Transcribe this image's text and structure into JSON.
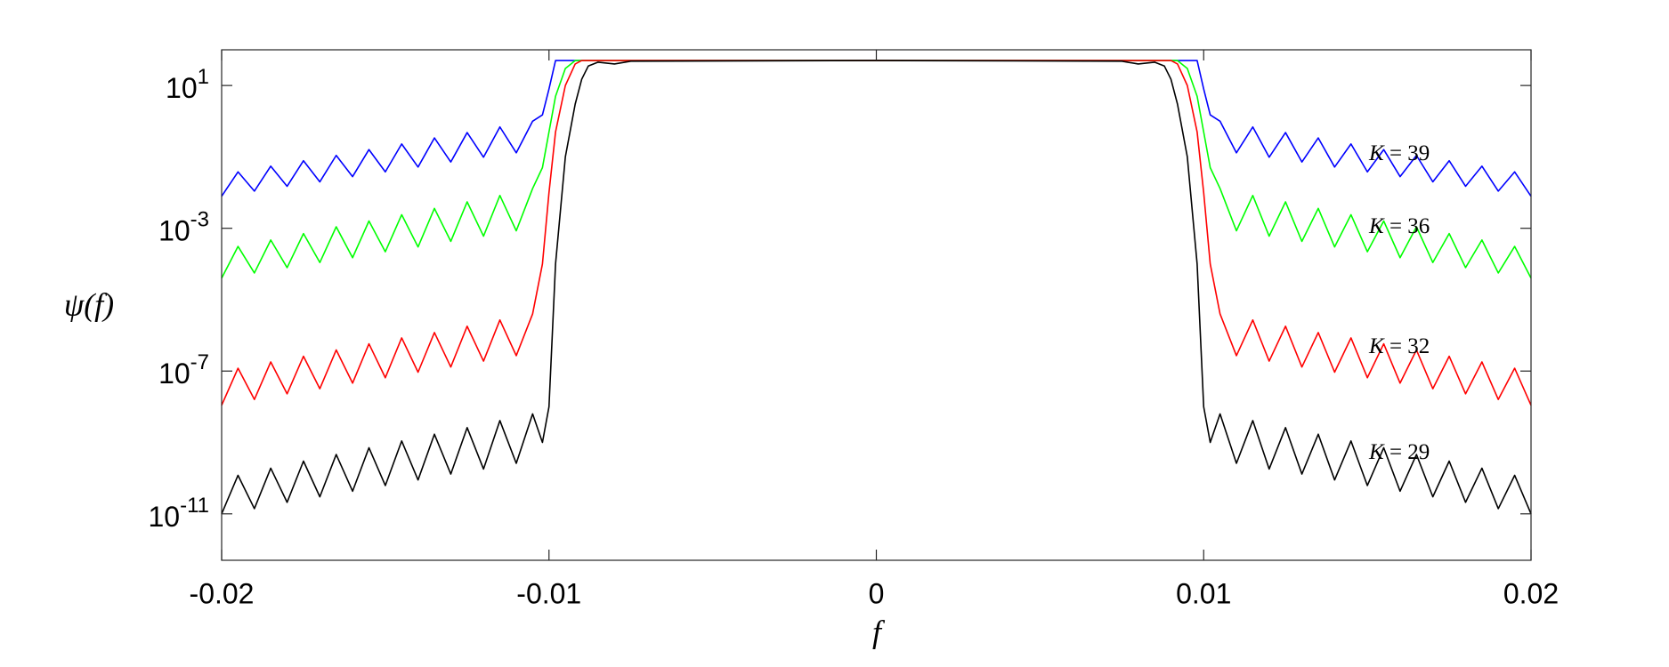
{
  "chart_data": {
    "type": "line",
    "x_label": "f",
    "y_label": "ψ(f)",
    "log_y": true,
    "xlim": [
      -0.02,
      0.02
    ],
    "xticks": [
      -0.02,
      -0.01,
      0,
      0.01,
      0.02
    ],
    "ylim": [
      5e-13,
      100
    ],
    "yticks": [
      {
        "value": 10,
        "label": "10^1"
      },
      {
        "value": 0.001,
        "label": "10^-3"
      },
      {
        "value": 1e-07,
        "label": "10^-7"
      },
      {
        "value": 1e-11,
        "label": "10^-11"
      }
    ],
    "x": [
      -0.02,
      -0.0195,
      -0.019,
      -0.0185,
      -0.018,
      -0.0175,
      -0.017,
      -0.0165,
      -0.016,
      -0.0155,
      -0.015,
      -0.0145,
      -0.014,
      -0.0135,
      -0.013,
      -0.0125,
      -0.012,
      -0.0115,
      -0.011,
      -0.0105,
      -0.0102,
      -0.01,
      -0.0098,
      -0.0095,
      -0.0092,
      -0.009,
      -0.0088,
      -0.0085,
      -0.008,
      -0.0075,
      0,
      0.0075,
      0.008,
      0.0085,
      0.0088,
      0.009,
      0.0092,
      0.0095,
      0.0098,
      0.01,
      0.0102,
      0.0105,
      0.011,
      0.0115,
      0.012,
      0.0125,
      0.013,
      0.0135,
      0.014,
      0.0145,
      0.015,
      0.0155,
      0.016,
      0.0165,
      0.017,
      0.0175,
      0.018,
      0.0185,
      0.019,
      0.0195,
      0.02
    ],
    "series": [
      {
        "name": "K = 39",
        "color": "#0000ff",
        "values": [
          0.0079,
          0.038,
          0.011,
          0.055,
          0.015,
          0.078,
          0.02,
          0.11,
          0.028,
          0.16,
          0.038,
          0.23,
          0.052,
          0.34,
          0.072,
          0.48,
          0.098,
          0.69,
          0.13,
          1,
          1.5,
          8,
          50,
          50,
          50,
          50,
          50,
          50,
          50,
          50,
          50,
          50,
          50,
          50,
          50,
          50,
          50,
          50,
          50,
          8,
          1.5,
          1,
          0.13,
          0.69,
          0.098,
          0.48,
          0.072,
          0.34,
          0.052,
          0.23,
          0.038,
          0.16,
          0.028,
          0.11,
          0.02,
          0.078,
          0.015,
          0.055,
          0.011,
          0.038,
          0.0079
        ]
      },
      {
        "name": "K = 36",
        "color": "#00ff00",
        "values": [
          4e-05,
          0.00031,
          5.6e-05,
          0.00047,
          7.9e-05,
          0.00071,
          0.00011,
          0.0011,
          0.00015,
          0.0016,
          0.00022,
          0.0024,
          0.0003,
          0.0036,
          0.00043,
          0.0055,
          0.0006,
          0.0083,
          0.00085,
          0.013,
          0.05,
          0.5,
          5,
          30,
          50,
          50,
          50,
          50,
          50,
          50,
          50,
          50,
          50,
          50,
          50,
          50,
          50,
          30,
          5,
          0.5,
          0.05,
          0.013,
          0.00085,
          0.0083,
          0.0006,
          0.0055,
          0.00043,
          0.0036,
          0.0003,
          0.0024,
          0.00022,
          0.0016,
          0.00015,
          0.0011,
          0.00011,
          0.00071,
          7.9e-05,
          0.00047,
          5.6e-05,
          0.00031,
          4e-05
        ]
      },
      {
        "name": "K = 32",
        "color": "#ff0000",
        "values": [
          1.1e-08,
          1.2e-07,
          1.6e-08,
          1.8e-07,
          2.3e-08,
          2.6e-07,
          3.2e-08,
          3.9e-07,
          4.6e-08,
          5.8e-07,
          6.5e-08,
          8.5e-07,
          9.3e-08,
          1.2e-06,
          1.3e-07,
          1.8e-06,
          1.9e-07,
          2.7e-06,
          2.7e-07,
          4e-06,
          0.0001,
          0.01,
          0.5,
          10,
          40,
          50,
          50,
          50,
          50,
          50,
          50,
          50,
          50,
          50,
          50,
          50,
          40,
          10,
          0.5,
          0.01,
          0.0001,
          4e-06,
          2.7e-07,
          2.7e-06,
          1.9e-07,
          1.8e-06,
          1.3e-07,
          1.2e-06,
          9.3e-08,
          8.5e-07,
          6.5e-08,
          5.8e-07,
          4.6e-08,
          3.9e-07,
          3.2e-08,
          2.6e-07,
          2.3e-08,
          1.8e-07,
          1.6e-08,
          1.2e-07,
          1.1e-08
        ]
      },
      {
        "name": "K = 29",
        "color": "#000000",
        "values": [
          1e-11,
          1.2e-10,
          1.4e-11,
          1.9e-10,
          2.1e-11,
          3e-10,
          3e-11,
          4.6e-10,
          4.3e-11,
          7.1e-10,
          6.2e-11,
          1.1e-09,
          8.9e-11,
          1.7e-09,
          1.3e-10,
          2.6e-09,
          1.8e-10,
          4.1e-09,
          2.6e-10,
          6.3e-09,
          1e-09,
          1e-08,
          0.0001,
          0.1,
          3,
          15,
          35,
          45,
          40,
          48,
          50,
          48,
          40,
          45,
          35,
          15,
          3,
          0.1,
          0.0001,
          1e-08,
          1e-09,
          6.3e-09,
          2.6e-10,
          4.1e-09,
          1.8e-10,
          2.6e-09,
          1.3e-10,
          1.7e-09,
          8.9e-11,
          1.1e-09,
          6.2e-11,
          7.1e-10,
          4.3e-11,
          4.6e-10,
          3e-11,
          3e-10,
          2.1e-11,
          1.9e-10,
          1.4e-11,
          1.2e-10,
          1e-11
        ]
      }
    ]
  }
}
